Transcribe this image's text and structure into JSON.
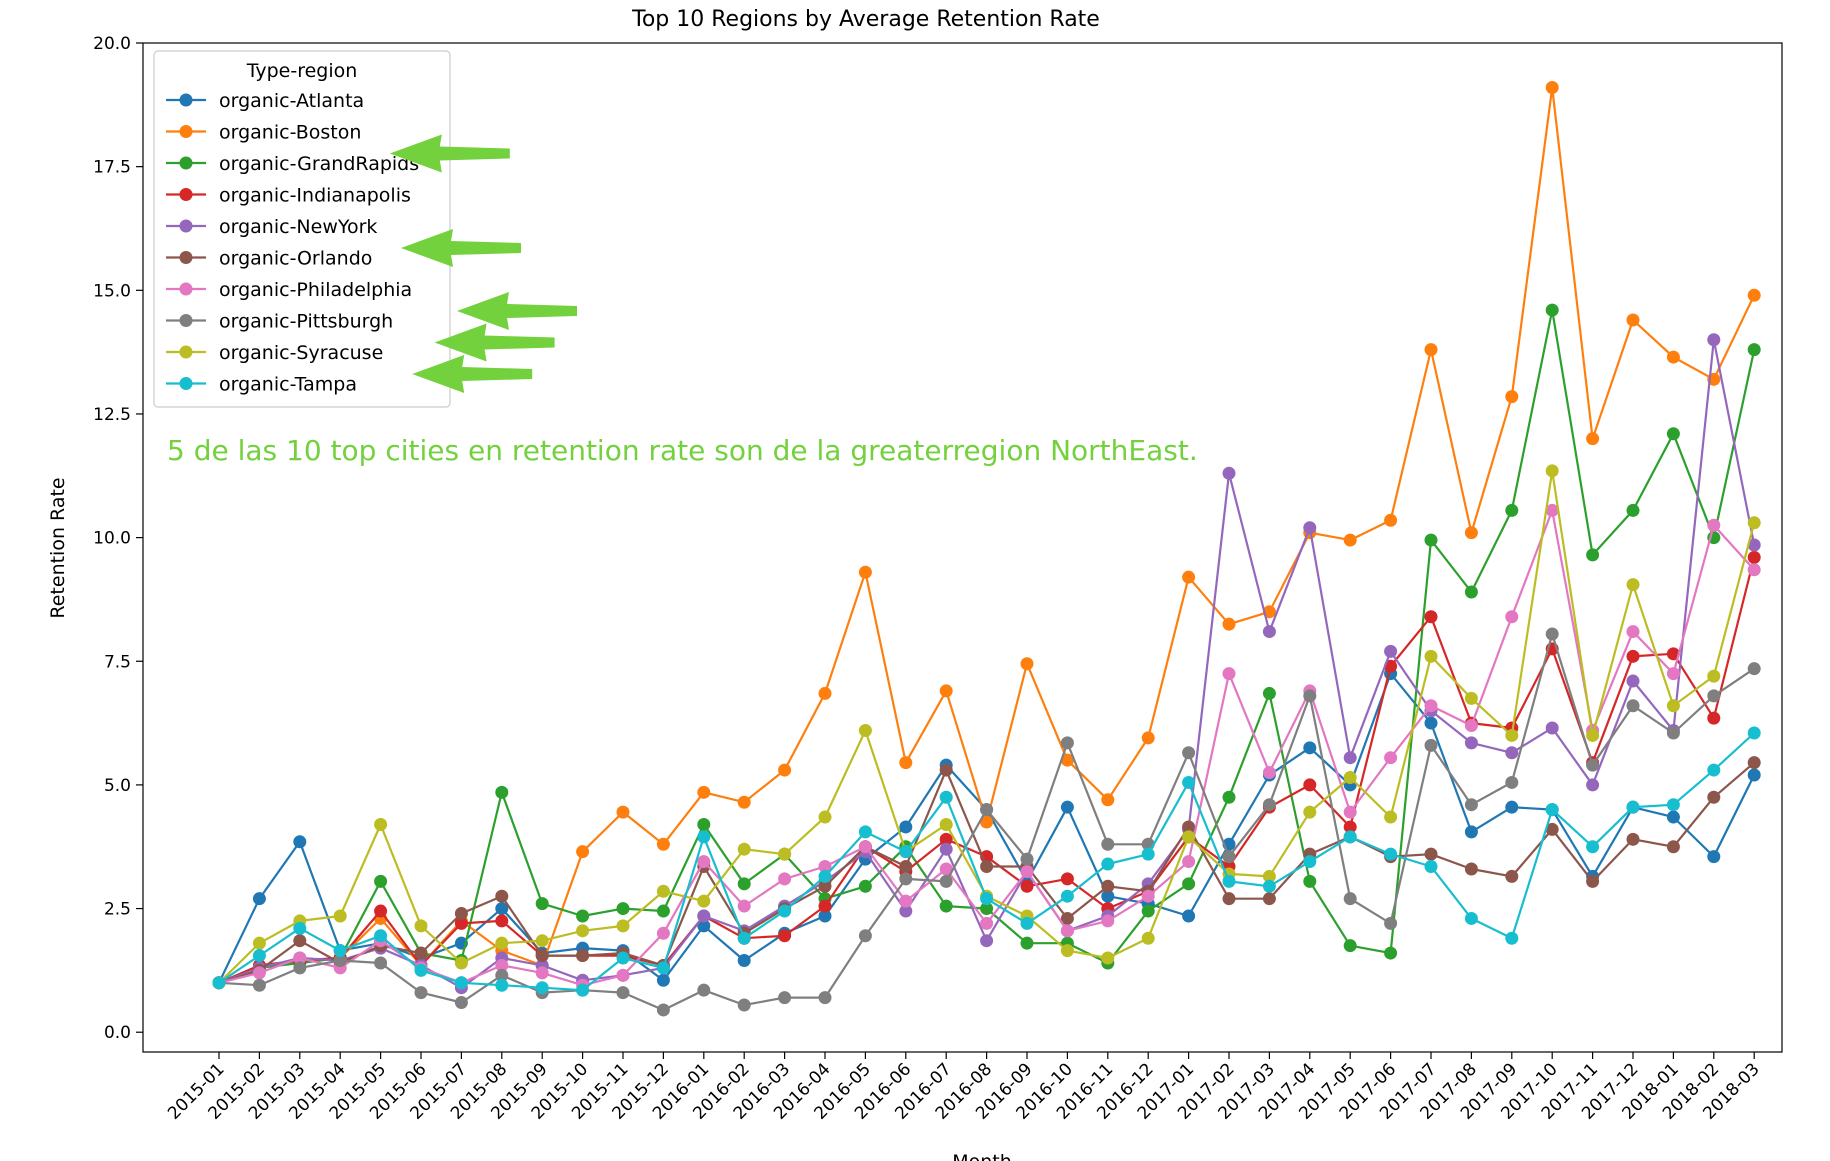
{
  "chart_data": {
    "type": "line",
    "title": "Top 10 Regions by Average Retention Rate",
    "xlabel": "Month",
    "ylabel": "Retention Rate",
    "ylim": [
      -0.4,
      20.0
    ],
    "yticks": [
      "0.0",
      "2.5",
      "5.0",
      "7.5",
      "10.0",
      "12.5",
      "15.0",
      "17.5",
      "20.0"
    ],
    "grid": false,
    "legend": {
      "title": "Type-region",
      "placement": "top-left"
    },
    "annotation": "5 de las 10 top cities en retention rate son de la greaterregion NorthEast.",
    "highlighted_series": [
      "organic-Boston",
      "organic-NewYork",
      "organic-Philadelphia",
      "organic-Pittsburgh",
      "organic-Syracuse"
    ],
    "highlight_color": "#73d13d",
    "x": [
      "2015-01",
      "2015-02",
      "2015-03",
      "2015-04",
      "2015-05",
      "2015-06",
      "2015-07",
      "2015-08",
      "2015-09",
      "2015-10",
      "2015-11",
      "2015-12",
      "2016-01",
      "2016-02",
      "2016-03",
      "2016-04",
      "2016-05",
      "2016-06",
      "2016-07",
      "2016-08",
      "2016-09",
      "2016-10",
      "2016-11",
      "2016-12",
      "2017-01",
      "2017-02",
      "2017-03",
      "2017-04",
      "2017-05",
      "2017-06",
      "2017-07",
      "2017-08",
      "2017-09",
      "2017-10",
      "2017-11",
      "2017-12",
      "2018-01",
      "2018-02",
      "2018-03"
    ],
    "series": [
      {
        "name": "organic-Atlanta",
        "color": "#1f77b4",
        "values": [
          1.0,
          2.7,
          3.85,
          1.65,
          1.8,
          1.5,
          1.8,
          2.5,
          1.6,
          1.7,
          1.65,
          1.05,
          2.15,
          1.45,
          2.0,
          2.35,
          3.5,
          4.15,
          5.4,
          4.5,
          3.05,
          4.55,
          2.75,
          2.6,
          2.35,
          3.8,
          5.2,
          5.75,
          5.0,
          7.25,
          6.25,
          4.05,
          4.55,
          4.5,
          3.15,
          4.55,
          4.35,
          3.55,
          5.2
        ]
      },
      {
        "name": "organic-Boston",
        "color": "#ff7f0e",
        "values": [
          1.0,
          1.3,
          1.45,
          1.5,
          2.3,
          1.35,
          2.25,
          1.65,
          1.35,
          3.65,
          4.45,
          3.8,
          4.85,
          4.65,
          5.3,
          6.85,
          9.3,
          5.45,
          6.9,
          4.25,
          7.45,
          5.5,
          4.7,
          5.95,
          9.2,
          8.25,
          8.5,
          10.1,
          9.95,
          10.35,
          13.8,
          10.1,
          12.85,
          19.1,
          12.0,
          14.4,
          13.65,
          13.2,
          14.9
        ]
      },
      {
        "name": "organic-GrandRapids",
        "color": "#2ca02c",
        "values": [
          1.0,
          1.3,
          1.4,
          1.5,
          3.05,
          1.6,
          1.45,
          4.85,
          2.6,
          2.35,
          2.5,
          2.45,
          4.2,
          3.0,
          3.6,
          2.7,
          2.95,
          3.75,
          2.55,
          2.5,
          1.8,
          1.8,
          1.4,
          2.45,
          3.0,
          4.75,
          6.85,
          3.05,
          1.75,
          1.6,
          9.95,
          8.9,
          10.55,
          14.6,
          9.65,
          10.55,
          12.1,
          10.0,
          13.8
        ]
      },
      {
        "name": "organic-Indianapolis",
        "color": "#d62728",
        "values": [
          1.0,
          1.35,
          1.45,
          1.5,
          2.45,
          1.35,
          2.2,
          2.25,
          1.55,
          1.55,
          1.55,
          1.35,
          2.35,
          1.9,
          1.95,
          2.55,
          3.75,
          3.25,
          3.9,
          3.55,
          2.95,
          3.1,
          2.5,
          2.85,
          3.95,
          3.35,
          4.55,
          5.0,
          4.15,
          7.4,
          8.4,
          6.25,
          6.15,
          7.75,
          5.45,
          7.6,
          7.65,
          6.35,
          9.6
        ]
      },
      {
        "name": "organic-NewYork",
        "color": "#9467bd",
        "values": [
          1.0,
          1.3,
          1.5,
          1.45,
          1.7,
          1.35,
          0.9,
          1.5,
          1.35,
          1.05,
          1.15,
          1.3,
          2.35,
          2.05,
          2.55,
          3.05,
          3.65,
          2.45,
          3.7,
          1.85,
          3.25,
          2.05,
          2.35,
          3.0,
          4.1,
          11.3,
          8.1,
          10.2,
          5.55,
          7.7,
          6.5,
          5.85,
          5.65,
          6.15,
          5.0,
          7.1,
          6.1,
          14.0,
          9.85
        ]
      },
      {
        "name": "organic-Orlando",
        "color": "#8c564b",
        "values": [
          1.0,
          1.25,
          1.85,
          1.4,
          1.75,
          1.6,
          2.4,
          2.75,
          1.55,
          1.55,
          1.6,
          1.35,
          3.35,
          2.0,
          2.5,
          2.95,
          3.75,
          3.35,
          5.3,
          3.35,
          3.35,
          2.3,
          2.95,
          2.85,
          4.15,
          2.7,
          2.7,
          3.6,
          3.95,
          3.55,
          3.6,
          3.3,
          3.15,
          4.1,
          3.05,
          3.9,
          3.75,
          4.75,
          5.45
        ]
      },
      {
        "name": "organic-Philadelphia",
        "color": "#e377c2",
        "values": [
          1.0,
          1.2,
          1.5,
          1.3,
          1.85,
          1.3,
          1.0,
          1.35,
          1.2,
          0.95,
          1.15,
          2.0,
          3.45,
          2.55,
          3.1,
          3.35,
          3.75,
          2.65,
          3.3,
          2.2,
          3.25,
          2.05,
          2.25,
          2.75,
          3.45,
          7.25,
          5.25,
          6.9,
          4.45,
          5.55,
          6.6,
          6.2,
          8.4,
          10.55,
          6.1,
          8.1,
          7.25,
          10.25,
          9.35
        ]
      },
      {
        "name": "organic-Pittsburgh",
        "color": "#7f7f7f",
        "values": [
          1.0,
          0.95,
          1.3,
          1.45,
          1.4,
          0.8,
          0.6,
          1.15,
          0.8,
          0.85,
          0.8,
          0.45,
          0.85,
          0.55,
          0.7,
          0.7,
          1.95,
          3.1,
          3.05,
          4.5,
          3.5,
          5.85,
          3.8,
          3.8,
          5.65,
          3.55,
          4.6,
          6.8,
          2.7,
          2.2,
          5.8,
          4.6,
          5.05,
          8.05,
          5.4,
          6.6,
          6.05,
          6.8,
          7.35
        ]
      },
      {
        "name": "organic-Syracuse",
        "color": "#bcbd22",
        "values": [
          1.0,
          1.8,
          2.25,
          2.35,
          4.2,
          2.15,
          1.4,
          1.8,
          1.85,
          2.05,
          2.15,
          2.85,
          2.65,
          3.7,
          3.6,
          4.35,
          6.1,
          3.65,
          4.2,
          2.75,
          2.35,
          1.65,
          1.5,
          1.9,
          3.95,
          3.2,
          3.15,
          4.45,
          5.15,
          4.35,
          7.6,
          6.75,
          6.0,
          11.35,
          6.0,
          9.05,
          6.6,
          7.2,
          10.3
        ]
      },
      {
        "name": "organic-Tampa",
        "color": "#17becf",
        "values": [
          1.0,
          1.55,
          2.1,
          1.65,
          1.95,
          1.25,
          1.0,
          0.95,
          0.9,
          0.85,
          1.5,
          1.3,
          3.95,
          1.9,
          2.45,
          3.15,
          4.05,
          3.65,
          4.75,
          2.7,
          2.2,
          2.75,
          3.4,
          3.6,
          5.05,
          3.05,
          2.95,
          3.45,
          3.95,
          3.6,
          3.35,
          2.3,
          1.9,
          4.5,
          3.75,
          4.55,
          4.6,
          5.3,
          6.05
        ]
      }
    ]
  }
}
